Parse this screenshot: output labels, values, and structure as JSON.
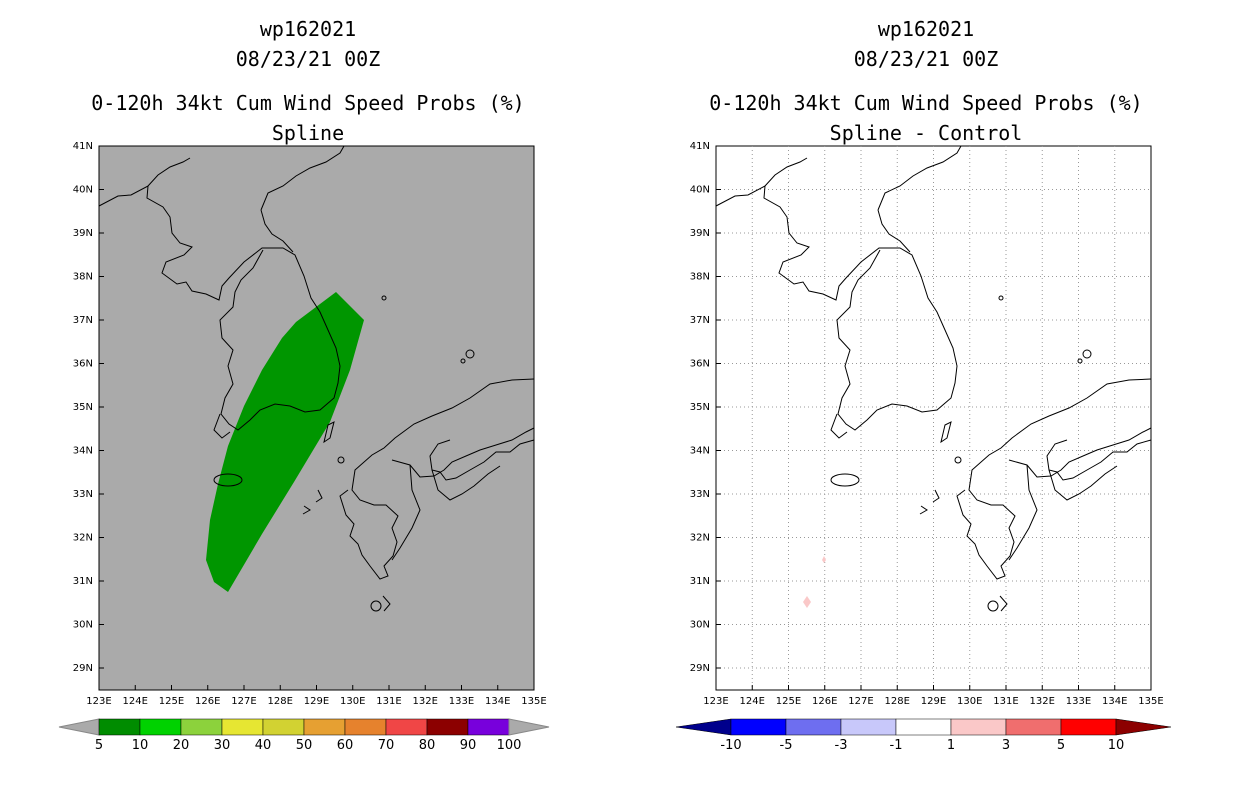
{
  "left_panel": {
    "title_line1": "wp162021",
    "title_line2": "08/23/21 00Z",
    "title_line3": "0-120h 34kt Cum Wind Speed Probs (%)",
    "title_line4": "Spline",
    "colorbar_labels": [
      "5",
      "10",
      "20",
      "30",
      "40",
      "50",
      "60",
      "70",
      "80",
      "90",
      "100"
    ],
    "colorbar_colors": [
      "#008c00",
      "#00d200",
      "#8cd23c",
      "#e6e632",
      "#d2d232",
      "#e6a032",
      "#e6822d",
      "#f04646",
      "#8c0000",
      "#7800dc"
    ],
    "shade_color": "#009600",
    "background_color": "#aaaaaa"
  },
  "right_panel": {
    "title_line1": "wp162021",
    "title_line2": "08/23/21 00Z",
    "title_line3": "0-120h 34kt Cum Wind Speed Probs (%)",
    "title_line4": "Spline - Control",
    "colorbar_labels": [
      "-10",
      "-5",
      "-3",
      "-1",
      "1",
      "3",
      "5",
      "10"
    ],
    "colorbar_colors": [
      "#00008c",
      "#0000ff",
      "#6e6ef0",
      "#c8c8fa",
      "#ffffff",
      "#fac8c8",
      "#f06e6e",
      "#ff0000",
      "#8c0000"
    ],
    "diff_color": "#fac8c8"
  },
  "axes": {
    "lat_labels": [
      "41N",
      "40N",
      "39N",
      "38N",
      "37N",
      "36N",
      "35N",
      "34N",
      "33N",
      "32N",
      "31N",
      "30N",
      "29N"
    ],
    "lon_labels": [
      "123E",
      "124E",
      "125E",
      "126E",
      "127E",
      "128E",
      "129E",
      "130E",
      "131E",
      "132E",
      "133E",
      "134E",
      "135E"
    ],
    "lon_range": [
      123,
      135
    ],
    "lat_range": [
      28.5,
      41
    ]
  }
}
